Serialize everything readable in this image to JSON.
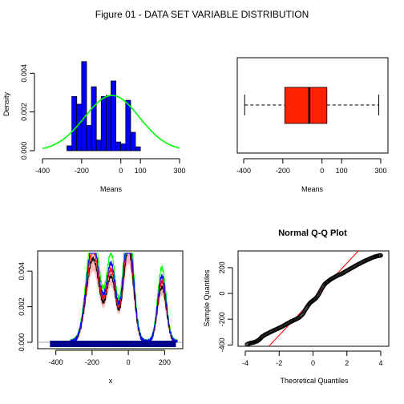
{
  "figure_title": "Figure 01 - DATA SET VARIABLE DISTRIBUTION",
  "colors": {
    "hist_fill": "#0000ff",
    "normal_curve": "#00ff00",
    "box_fill": "#ff2200",
    "qq_line": "#ff0000",
    "band_fill": "#ffaaaa",
    "rug": "#00008b"
  },
  "chart_data": [
    {
      "type": "histogram",
      "panel": "top-left",
      "title": "",
      "xlabel": "Means",
      "ylabel": "Density",
      "xlim": [
        -400,
        300
      ],
      "ylim": [
        0,
        0.0048
      ],
      "xticks": [
        -400,
        -200,
        0,
        100,
        300
      ],
      "xtick_labels": [
        "-400",
        "-200",
        "0",
        "100",
        "300"
      ],
      "yticks": [
        0,
        0.002,
        0.004
      ],
      "ytick_labels": [
        "0.000",
        "0.002",
        "0.004"
      ],
      "bins": [
        {
          "x0": -275,
          "x1": -250,
          "density": 0.00025
        },
        {
          "x0": -250,
          "x1": -225,
          "density": 0.0028
        },
        {
          "x0": -225,
          "x1": -200,
          "density": 0.0024
        },
        {
          "x0": -200,
          "x1": -175,
          "density": 0.0046
        },
        {
          "x0": -175,
          "x1": -150,
          "density": 0.0013
        },
        {
          "x0": -150,
          "x1": -125,
          "density": 0.0033
        },
        {
          "x0": -125,
          "x1": -100,
          "density": 0.00055
        },
        {
          "x0": -100,
          "x1": -75,
          "density": 0.0028
        },
        {
          "x0": -75,
          "x1": -50,
          "density": 0.00285
        },
        {
          "x0": -50,
          "x1": -25,
          "density": 0.0036
        },
        {
          "x0": -25,
          "x1": 0,
          "density": 0.00045
        },
        {
          "x0": 0,
          "x1": 25,
          "density": 0.00035
        },
        {
          "x0": 25,
          "x1": 50,
          "density": 0.0026
        },
        {
          "x0": 50,
          "x1": 75,
          "density": 0.00095
        },
        {
          "x0": 75,
          "x1": 100,
          "density": 0.0002
        }
      ],
      "normal_curve": {
        "mean": -45,
        "sd": 140
      }
    },
    {
      "type": "boxplot",
      "panel": "top-right",
      "orientation": "horizontal",
      "xlabel": "Means",
      "xlim": [
        -400,
        300
      ],
      "xticks": [
        -400,
        -200,
        0,
        100,
        300
      ],
      "xtick_labels": [
        "-400",
        "-200",
        "0",
        "100",
        "300"
      ],
      "whisker_low": -395,
      "q1": -190,
      "median": -65,
      "q3": 25,
      "whisker_high": 290
    },
    {
      "type": "line",
      "panel": "bottom-left",
      "xlabel": "x",
      "ylabel": "",
      "xlim": [
        -500,
        300
      ],
      "ylim": [
        0,
        0.005
      ],
      "xticks": [
        -400,
        -200,
        0,
        200
      ],
      "xtick_labels": [
        "-400",
        "-200",
        "0",
        "200"
      ],
      "yticks": [
        0,
        0.002,
        0.004
      ],
      "ytick_labels": [
        "0.000",
        "0.002",
        "0.004"
      ],
      "peaks": [
        {
          "center": -195,
          "width": 36,
          "height": 0.0047
        },
        {
          "center": -95,
          "width": 26,
          "height": 0.0036
        },
        {
          "center": 0,
          "width": 28,
          "height": 0.0052
        },
        {
          "center": 185,
          "width": 24,
          "height": 0.0031
        }
      ],
      "series": [
        {
          "color": "#000000",
          "scale": 1.0
        },
        {
          "color": "#ff0000",
          "scale": 1.1
        },
        {
          "color": "#00ff00",
          "scale": 1.35
        },
        {
          "color": "#0000ff",
          "scale": 1.2
        }
      ],
      "rug_range": [
        -430,
        260
      ]
    },
    {
      "type": "scatter",
      "panel": "bottom-right",
      "title": "Normal Q-Q Plot",
      "xlabel": "Theoretical Quantiles",
      "ylabel": "Sample Quantiles",
      "xlim": [
        -4,
        4
      ],
      "ylim": [
        -410,
        330
      ],
      "xticks": [
        -4,
        -2,
        0,
        2,
        4
      ],
      "xtick_labels": [
        "-4",
        "-2",
        "0",
        "2",
        "4"
      ],
      "yticks": [
        -400,
        -200,
        0,
        200
      ],
      "ytick_labels": [
        "-400",
        "-200",
        "0",
        "200"
      ],
      "qq_line": {
        "intercept": -45,
        "slope": 140
      },
      "sample_points": [
        [
          -3.9,
          -395
        ],
        [
          -3.7,
          -385
        ],
        [
          -3.5,
          -380
        ],
        [
          -3.3,
          -370
        ],
        [
          -3.15,
          -355
        ],
        [
          -3.0,
          -335
        ],
        [
          -2.8,
          -318
        ],
        [
          -2.6,
          -305
        ],
        [
          -2.4,
          -292
        ],
        [
          -2.2,
          -280
        ],
        [
          -2.0,
          -268
        ],
        [
          -1.8,
          -255
        ],
        [
          -1.6,
          -240
        ],
        [
          -1.4,
          -225
        ],
        [
          -1.2,
          -212
        ],
        [
          -1.0,
          -200
        ],
        [
          -0.8,
          -185
        ],
        [
          -0.6,
          -160
        ],
        [
          -0.45,
          -125
        ],
        [
          -0.3,
          -95
        ],
        [
          -0.15,
          -70
        ],
        [
          0.0,
          -55
        ],
        [
          0.15,
          -40
        ],
        [
          0.3,
          -15
        ],
        [
          0.45,
          20
        ],
        [
          0.6,
          55
        ],
        [
          0.75,
          80
        ],
        [
          0.9,
          95
        ],
        [
          1.05,
          110
        ],
        [
          1.25,
          125
        ],
        [
          1.45,
          140
        ],
        [
          1.65,
          150
        ],
        [
          1.85,
          165
        ],
        [
          2.05,
          180
        ],
        [
          2.25,
          195
        ],
        [
          2.45,
          210
        ],
        [
          2.65,
          225
        ],
        [
          2.85,
          238
        ],
        [
          3.05,
          252
        ],
        [
          3.25,
          263
        ],
        [
          3.45,
          275
        ],
        [
          3.65,
          285
        ],
        [
          3.85,
          292
        ],
        [
          4.0,
          295
        ]
      ]
    }
  ]
}
